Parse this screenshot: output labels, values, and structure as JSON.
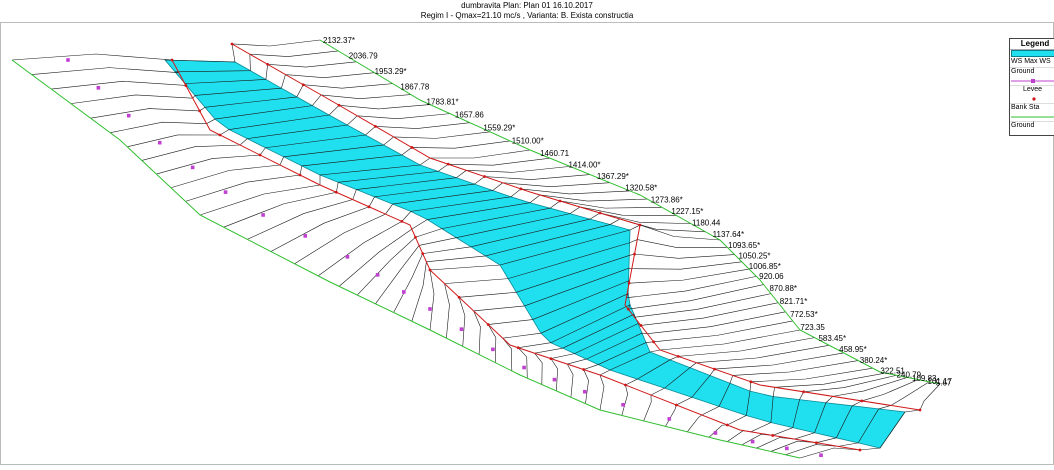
{
  "header": {
    "line1": "dumbravita      Plan: Plan 01    16.10.2017",
    "line2": "Regim I -  Qmax=21.10 mc/s , Varianta: B. Exista  constructia"
  },
  "legend": {
    "title": "Legend",
    "items": [
      {
        "label": "WS Max WS",
        "kind": "water-surface"
      },
      {
        "label": "Ground",
        "kind": "ground-line"
      },
      {
        "label": "Levee",
        "kind": "levee"
      },
      {
        "label": "Bank Sta",
        "kind": "bank-station"
      },
      {
        "label": "Ground",
        "kind": "ground-line"
      }
    ]
  },
  "stations": [
    "2132.37*",
    "2036.79",
    "1953.29*",
    "1867.78",
    "1783.81*",
    "1657.86",
    "1559.29*",
    "1510.00*",
    "1460.71",
    "1414.00*",
    "1367.29*",
    "1320.58*",
    "1273.86*",
    "1227.15*",
    "1180.44",
    "1137.64*",
    "1093.65*",
    "1050.25*",
    "1006.85*",
    "920.06",
    "870.88*",
    "821.71*",
    "772.53*",
    "723.35",
    "583.45*",
    "458.95*",
    "380.24*",
    "322.51",
    "240.79",
    "109.83",
    "101.17",
    "5.67"
  ],
  "colors": {
    "water": "#20e0f0",
    "water_edge": "#0a8a96",
    "ground": "#2fbf2f",
    "bank": "#d01818",
    "levee": "#c040d0",
    "xs_line": "#1a1a1a"
  }
}
